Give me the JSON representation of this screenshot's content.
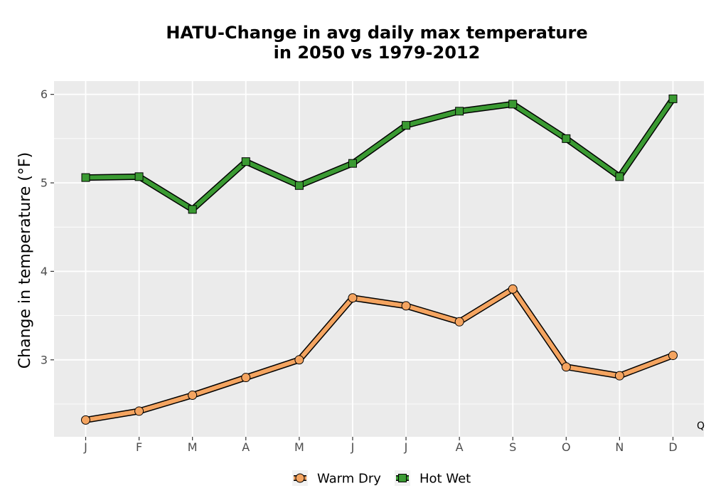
{
  "chart_data": {
    "type": "line",
    "title": "HATU-Change in avg daily max temperature\nin 2050 vs 1979-2012",
    "xlabel": "",
    "ylabel": "Change in temperature (°F)",
    "categories": [
      "J",
      "F",
      "M",
      "A",
      "M",
      "J",
      "J",
      "A",
      "S",
      "O",
      "N",
      "D"
    ],
    "ylim": [
      2.13,
      6.15
    ],
    "yticks": [
      3,
      4,
      5,
      6
    ],
    "grid": true,
    "legend_position": "bottom",
    "corner_label": "Q",
    "series": [
      {
        "name": "Warm Dry",
        "marker": "circle",
        "color": "#F4A460",
        "values": [
          2.32,
          2.42,
          2.6,
          2.8,
          3.0,
          3.7,
          3.61,
          3.43,
          3.8,
          2.92,
          2.82,
          3.05
        ]
      },
      {
        "name": "Hot Wet",
        "marker": "square",
        "color": "#3A9A32",
        "values": [
          5.06,
          5.07,
          4.7,
          5.24,
          4.97,
          5.22,
          5.65,
          5.81,
          5.89,
          5.5,
          5.07,
          5.95
        ]
      }
    ]
  }
}
